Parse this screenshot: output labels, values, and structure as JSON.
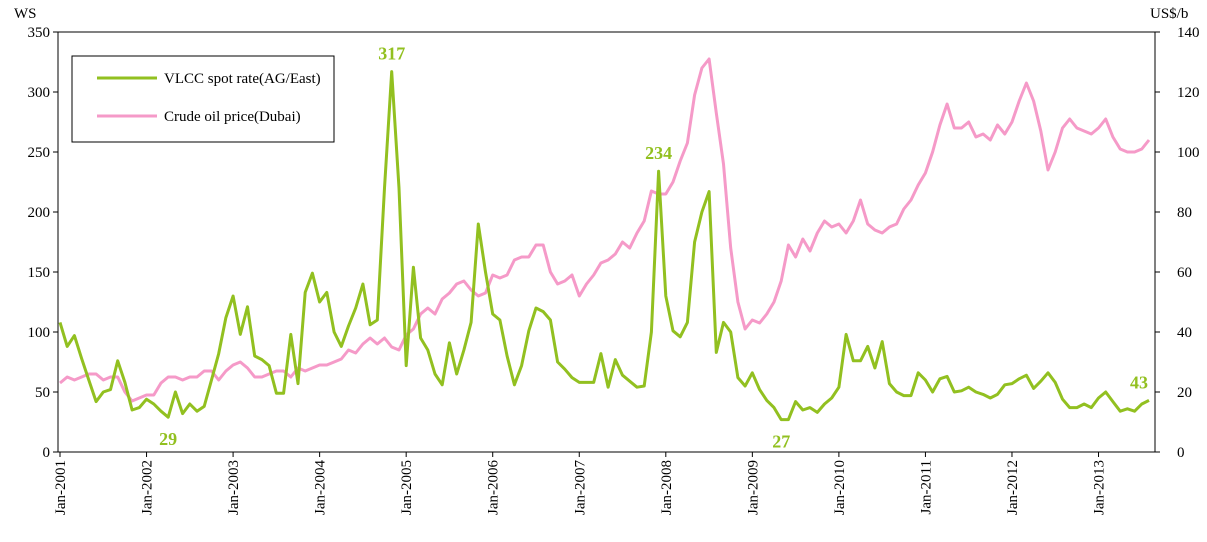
{
  "chart_data": {
    "type": "line",
    "y_label": "WS",
    "y2_label": "US$/b",
    "ylim": [
      0,
      350
    ],
    "yticks": [
      0,
      50,
      100,
      150,
      200,
      250,
      300,
      350
    ],
    "y2lim": [
      0,
      140
    ],
    "y2ticks": [
      0,
      20,
      40,
      60,
      80,
      100,
      120,
      140
    ],
    "legend": "upper-left",
    "categories": [
      "Jan-2001",
      null,
      null,
      null,
      null,
      null,
      null,
      null,
      null,
      null,
      null,
      null,
      "Jan-2002",
      null,
      null,
      null,
      null,
      null,
      null,
      null,
      null,
      null,
      null,
      null,
      "Jan-2003",
      null,
      null,
      null,
      null,
      null,
      null,
      null,
      null,
      null,
      null,
      null,
      "Jan-2004",
      null,
      null,
      null,
      null,
      null,
      null,
      null,
      null,
      null,
      null,
      null,
      "Jan-2005",
      null,
      null,
      null,
      null,
      null,
      null,
      null,
      null,
      null,
      null,
      null,
      "Jan-2006",
      null,
      null,
      null,
      null,
      null,
      null,
      null,
      null,
      null,
      null,
      null,
      "Jan-2007",
      null,
      null,
      null,
      null,
      null,
      null,
      null,
      null,
      null,
      null,
      null,
      "Jan-2008",
      null,
      null,
      null,
      null,
      null,
      null,
      null,
      null,
      null,
      null,
      null,
      "Jan-2009",
      null,
      null,
      null,
      null,
      null,
      null,
      null,
      null,
      null,
      null,
      null,
      "Jan-2010",
      null,
      null,
      null,
      null,
      null,
      null,
      null,
      null,
      null,
      null,
      null,
      "Jan-2011",
      null,
      null,
      null,
      null,
      null,
      null,
      null,
      null,
      null,
      null,
      null,
      "Jan-2012",
      null,
      null,
      null,
      null,
      null,
      null,
      null,
      null,
      null,
      null,
      null,
      "Jan-2013",
      null,
      null,
      null,
      null,
      null,
      null,
      null
    ],
    "series": [
      {
        "name": "VLCC spot rate(AG/East)",
        "color": "#92c020",
        "values": [
          108,
          88,
          97,
          78,
          60,
          42,
          50,
          52,
          76,
          58,
          35,
          37,
          44,
          40,
          34,
          29,
          50,
          32,
          40,
          34,
          38,
          60,
          82,
          112,
          130,
          98,
          121,
          80,
          77,
          72,
          49,
          49,
          98,
          57,
          133,
          149,
          125,
          133,
          100,
          88,
          105,
          120,
          140,
          106,
          110,
          220,
          317,
          220,
          72,
          154,
          95,
          85,
          65,
          56,
          91,
          65,
          85,
          108,
          190,
          150,
          115,
          110,
          80,
          56,
          72,
          101,
          120,
          117,
          110,
          75,
          69,
          62,
          58,
          58,
          58,
          82,
          54,
          77,
          64,
          59,
          54,
          55,
          100,
          234,
          130,
          101,
          96,
          108,
          175,
          200,
          217,
          83,
          108,
          100,
          62,
          55,
          66,
          52,
          43,
          37,
          27,
          27,
          42,
          35,
          37,
          33,
          40,
          45,
          54,
          98,
          76,
          76,
          88,
          70,
          92,
          57,
          50,
          47,
          47,
          66,
          60,
          50,
          61,
          63,
          50,
          51,
          54,
          50,
          48,
          45,
          48,
          56,
          57,
          61,
          64,
          53,
          59,
          66,
          58,
          44,
          37,
          37,
          40,
          37,
          45,
          50,
          42,
          34,
          36,
          34,
          40,
          43
        ],
        "data_labels": [
          null,
          null,
          null,
          null,
          null,
          null,
          null,
          null,
          null,
          null,
          null,
          null,
          null,
          null,
          null,
          29,
          null,
          null,
          null,
          null,
          null,
          null,
          null,
          null,
          null,
          null,
          null,
          null,
          null,
          null,
          null,
          null,
          null,
          null,
          null,
          null,
          null,
          null,
          null,
          null,
          null,
          null,
          null,
          null,
          null,
          null,
          317,
          null,
          null,
          null,
          null,
          null,
          null,
          null,
          null,
          null,
          null,
          null,
          null,
          null,
          null,
          null,
          null,
          null,
          null,
          null,
          null,
          null,
          null,
          null,
          null,
          null,
          null,
          null,
          null,
          null,
          null,
          null,
          null,
          null,
          null,
          null,
          null,
          234,
          null,
          null,
          null,
          null,
          null,
          null,
          null,
          null,
          null,
          null,
          null,
          null,
          null,
          null,
          null,
          null,
          27,
          null,
          null,
          null,
          null,
          null,
          null,
          null,
          null,
          null,
          null,
          null,
          null,
          null,
          null,
          null,
          null,
          null,
          null,
          null,
          null,
          null,
          null,
          null,
          null,
          null,
          null,
          null,
          null,
          null,
          null,
          null,
          null,
          null,
          null,
          null,
          null,
          null,
          null,
          null,
          null,
          null,
          null,
          null,
          null,
          null,
          null,
          null,
          null,
          null,
          null,
          43
        ]
      },
      {
        "name": "Crude oil price(Dubai)",
        "color": "#f59ac8",
        "axis": "y2",
        "values": [
          23,
          25,
          24,
          25,
          26,
          26,
          24,
          25,
          25,
          20,
          17,
          18,
          19,
          19,
          23,
          25,
          25,
          24,
          25,
          25,
          27,
          27,
          24,
          27,
          29,
          30,
          28,
          25,
          25,
          26,
          27,
          27,
          25,
          28,
          27,
          28,
          29,
          29,
          30,
          31,
          34,
          33,
          36,
          38,
          36,
          38,
          35,
          34,
          39,
          41,
          46,
          48,
          46,
          51,
          53,
          56,
          57,
          54,
          52,
          53,
          59,
          58,
          59,
          64,
          65,
          65,
          69,
          69,
          60,
          56,
          57,
          59,
          52,
          56,
          59,
          63,
          64,
          66,
          70,
          68,
          73,
          77,
          87,
          86,
          86,
          90,
          97,
          103,
          119,
          128,
          131,
          113,
          96,
          68,
          50,
          41,
          44,
          43,
          46,
          50,
          57,
          69,
          65,
          71,
          67,
          73,
          77,
          75,
          76,
          73,
          77,
          84,
          76,
          74,
          73,
          75,
          76,
          81,
          84,
          89,
          93,
          100,
          109,
          116,
          108,
          108,
          110,
          105,
          106,
          104,
          109,
          106,
          110,
          117,
          123,
          117,
          107,
          94,
          100,
          108,
          111,
          108,
          107,
          106,
          108,
          111,
          105,
          101,
          100,
          100,
          101,
          104
        ]
      }
    ]
  }
}
